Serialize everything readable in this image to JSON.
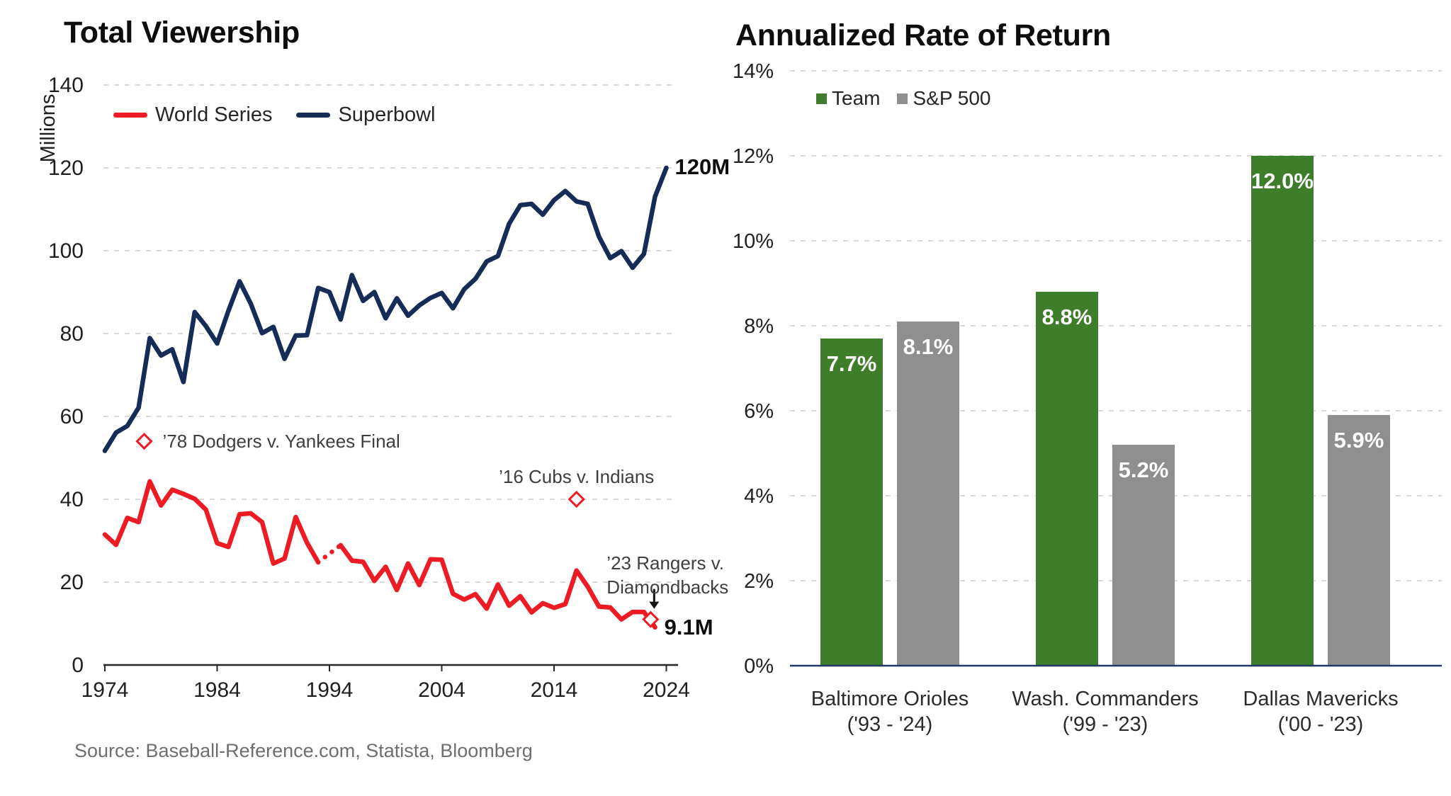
{
  "source": "Source: Baseball-Reference.com, Statista, Bloomberg",
  "colors": {
    "world_series_red": "#ed1b24",
    "superbowl_navy": "#172b57",
    "team_green": "#3e7d2a",
    "sp500_gray": "#8f8f8f",
    "gridline": "#d9d9d9",
    "left_axis": "#262626",
    "right_axis": "#1f3864",
    "annotation_text": "#3f3f3f"
  },
  "chart_data": [
    {
      "type": "line",
      "title": "Total Viewership",
      "y_axis_label": "Millions",
      "ylim": [
        0,
        140
      ],
      "xlim": [
        1974,
        2024
      ],
      "y_ticks": [
        0,
        20,
        40,
        60,
        80,
        100,
        120,
        140
      ],
      "x_ticks": [
        1974,
        1984,
        1994,
        2004,
        2014,
        2024
      ],
      "grid": "dashed-horizontal",
      "legend_position": "top-left",
      "series": [
        {
          "name": "World Series",
          "color": "#ed1b24",
          "segments": [
            {
              "style": "solid",
              "start_year": 1974,
              "values": [
                31.5,
                29.0,
                35.5,
                34.5,
                44.3,
                38.5,
                42.3,
                41.3,
                40.1,
                37.5,
                29.4,
                28.5,
                36.4,
                36.6,
                34.5,
                24.5,
                25.7,
                35.7,
                29.5,
                24.8
              ]
            },
            {
              "style": "dotted",
              "years": [
                1993,
                1995
              ],
              "values": [
                24.8,
                28.9
              ]
            },
            {
              "style": "solid",
              "start_year": 1995,
              "values": [
                28.9,
                25.2,
                24.9,
                20.3,
                23.7,
                18.1,
                24.5,
                19.3,
                25.5,
                25.4,
                17.2,
                15.8,
                17.1,
                13.6,
                19.4,
                14.3,
                16.6,
                12.7,
                14.9,
                13.8,
                14.7,
                22.8,
                18.9,
                14.1,
                13.9,
                11.0,
                12.8,
                12.8,
                9.1
              ]
            }
          ]
        },
        {
          "name": "Superbowl",
          "color": "#172b57",
          "segments": [
            {
              "style": "solid",
              "start_year": 1974,
              "values": [
                51.7,
                56.1,
                57.7,
                62.1,
                78.9,
                74.7,
                76.2,
                68.3,
                85.2,
                81.8,
                77.6,
                85.5,
                92.6,
                87.2,
                80.1,
                81.6,
                73.9,
                79.5,
                79.6,
                91.0,
                90.0,
                83.4,
                94.1,
                87.9,
                90.0,
                83.7,
                88.5,
                84.3,
                86.8,
                88.6,
                89.8,
                86.1,
                90.7,
                93.2,
                97.4,
                98.7,
                106.5,
                111.0,
                111.3,
                108.7,
                112.2,
                114.4,
                111.9,
                111.3,
                103.4,
                98.2,
                99.9,
                95.9,
                99.2,
                113.1,
                120.0
              ]
            }
          ]
        }
      ],
      "annotations": [
        {
          "text": "’78 Dodgers v. Yankees Final",
          "marker_year": 1977.5,
          "marker_value": 54,
          "marker": "red-diamond",
          "placement": "right-of-marker"
        },
        {
          "text": "’16 Cubs v. Indians",
          "marker_year": 2016,
          "marker_value": 40,
          "marker": "red-diamond",
          "placement": "above-marker"
        },
        {
          "text": "’23 Rangers v.\nDiamondbacks",
          "marker_year": 2022.6,
          "marker_value": 11.0,
          "marker": "red-diamond",
          "arrow": true,
          "placement": "above-arrow"
        }
      ],
      "end_labels": [
        {
          "text": "120M",
          "series": "Superbowl",
          "year": 2024,
          "value": 120
        },
        {
          "text": "9.1M",
          "series": "World Series",
          "year": 2023,
          "value": 9.1
        }
      ]
    },
    {
      "type": "bar",
      "title": "Annualized Rate of Return",
      "ylim": [
        0,
        14
      ],
      "y_ticks": [
        0,
        2,
        4,
        6,
        8,
        10,
        12,
        14
      ],
      "y_tick_suffix": "%",
      "grid": "dashed-horizontal",
      "legend_position": "top-left",
      "categories": [
        {
          "name": "Baltimore Orioles",
          "period": "('93 - '24)"
        },
        {
          "name": "Wash. Commanders",
          "period": "('99 - '23)"
        },
        {
          "name": "Dallas Mavericks",
          "period": "('00 - '23)"
        }
      ],
      "series": [
        {
          "name": "Team",
          "color": "#3e7d2a",
          "values": [
            7.7,
            8.8,
            12.0
          ],
          "labels": [
            "7.7%",
            "8.8%",
            "12.0%"
          ]
        },
        {
          "name": "S&P 500",
          "color": "#8f8f8f",
          "values": [
            8.1,
            5.2,
            5.9
          ],
          "labels": [
            "8.1%",
            "5.2%",
            "5.9%"
          ]
        }
      ]
    }
  ]
}
